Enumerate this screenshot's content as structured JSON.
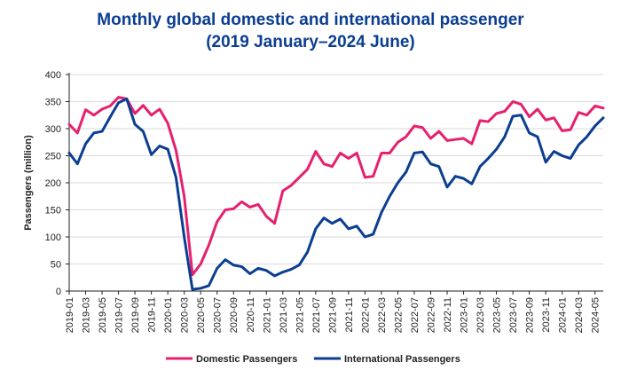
{
  "chart_data": {
    "type": "line",
    "title": "Monthly global domestic and international passenger",
    "subtitle": "(2019 January–2024 June)",
    "ylabel": "Passengers (million)",
    "xlabel": "",
    "ylim": [
      0,
      400
    ],
    "yticks": [
      0,
      50,
      100,
      150,
      200,
      250,
      300,
      350,
      400
    ],
    "grid": "horizontal",
    "legend_position": "bottom",
    "x": [
      "2019-01",
      "2019-02",
      "2019-03",
      "2019-04",
      "2019-05",
      "2019-06",
      "2019-07",
      "2019-08",
      "2019-09",
      "2019-10",
      "2019-11",
      "2019-12",
      "2020-01",
      "2020-02",
      "2020-03",
      "2020-04",
      "2020-05",
      "2020-06",
      "2020-07",
      "2020-08",
      "2020-09",
      "2020-10",
      "2020-11",
      "2020-12",
      "2021-01",
      "2021-02",
      "2021-03",
      "2021-04",
      "2021-05",
      "2021-06",
      "2021-07",
      "2021-08",
      "2021-09",
      "2021-10",
      "2021-11",
      "2021-12",
      "2022-01",
      "2022-02",
      "2022-03",
      "2022-04",
      "2022-05",
      "2022-06",
      "2022-07",
      "2022-08",
      "2022-09",
      "2022-10",
      "2022-11",
      "2022-12",
      "2023-01",
      "2023-02",
      "2023-03",
      "2023-04",
      "2023-05",
      "2023-06",
      "2023-07",
      "2023-08",
      "2023-09",
      "2023-10",
      "2023-11",
      "2023-12",
      "2024-01",
      "2024-02",
      "2024-03",
      "2024-04",
      "2024-05",
      "2024-06"
    ],
    "tick_labels": [
      "2019-01",
      "2019-03",
      "2019-05",
      "2019-07",
      "2019-09",
      "2019-11",
      "2020-01",
      "2020-03",
      "2020-05",
      "2020-07",
      "2020-09",
      "2020-11",
      "2021-01",
      "2021-03",
      "2021-05",
      "2021-07",
      "2021-09",
      "2021-11",
      "2022-01",
      "2022-03",
      "2022-05",
      "2022-07",
      "2022-09",
      "2022-11",
      "2023-01",
      "2023-03",
      "2023-05",
      "2023-07",
      "2023-09",
      "2023-11",
      "2024-01",
      "2024-03",
      "2024-05"
    ],
    "series": [
      {
        "name": "Domestic Passengers",
        "color": "#e6206e",
        "values": [
          308,
          292,
          335,
          325,
          336,
          342,
          358,
          355,
          328,
          343,
          325,
          336,
          310,
          260,
          175,
          30,
          50,
          85,
          128,
          150,
          152,
          165,
          155,
          160,
          138,
          125,
          185,
          195,
          210,
          225,
          258,
          235,
          230,
          255,
          245,
          255,
          210,
          212,
          255,
          255,
          275,
          285,
          305,
          302,
          282,
          295,
          278,
          280,
          282,
          272,
          315,
          313,
          328,
          332,
          350,
          345,
          322,
          336,
          316,
          320,
          296,
          298,
          330,
          325,
          342,
          338
        ]
      },
      {
        "name": "International Passengers",
        "color": "#0b3e91",
        "values": [
          255,
          235,
          272,
          292,
          295,
          322,
          348,
          355,
          308,
          295,
          252,
          268,
          262,
          210,
          100,
          3,
          5,
          10,
          42,
          58,
          48,
          45,
          32,
          42,
          38,
          28,
          35,
          40,
          48,
          72,
          115,
          135,
          125,
          133,
          115,
          120,
          100,
          105,
          145,
          175,
          200,
          220,
          255,
          257,
          235,
          230,
          192,
          212,
          208,
          198,
          230,
          245,
          262,
          285,
          323,
          325,
          292,
          285,
          238,
          258,
          250,
          245,
          270,
          285,
          305,
          320
        ]
      }
    ]
  }
}
